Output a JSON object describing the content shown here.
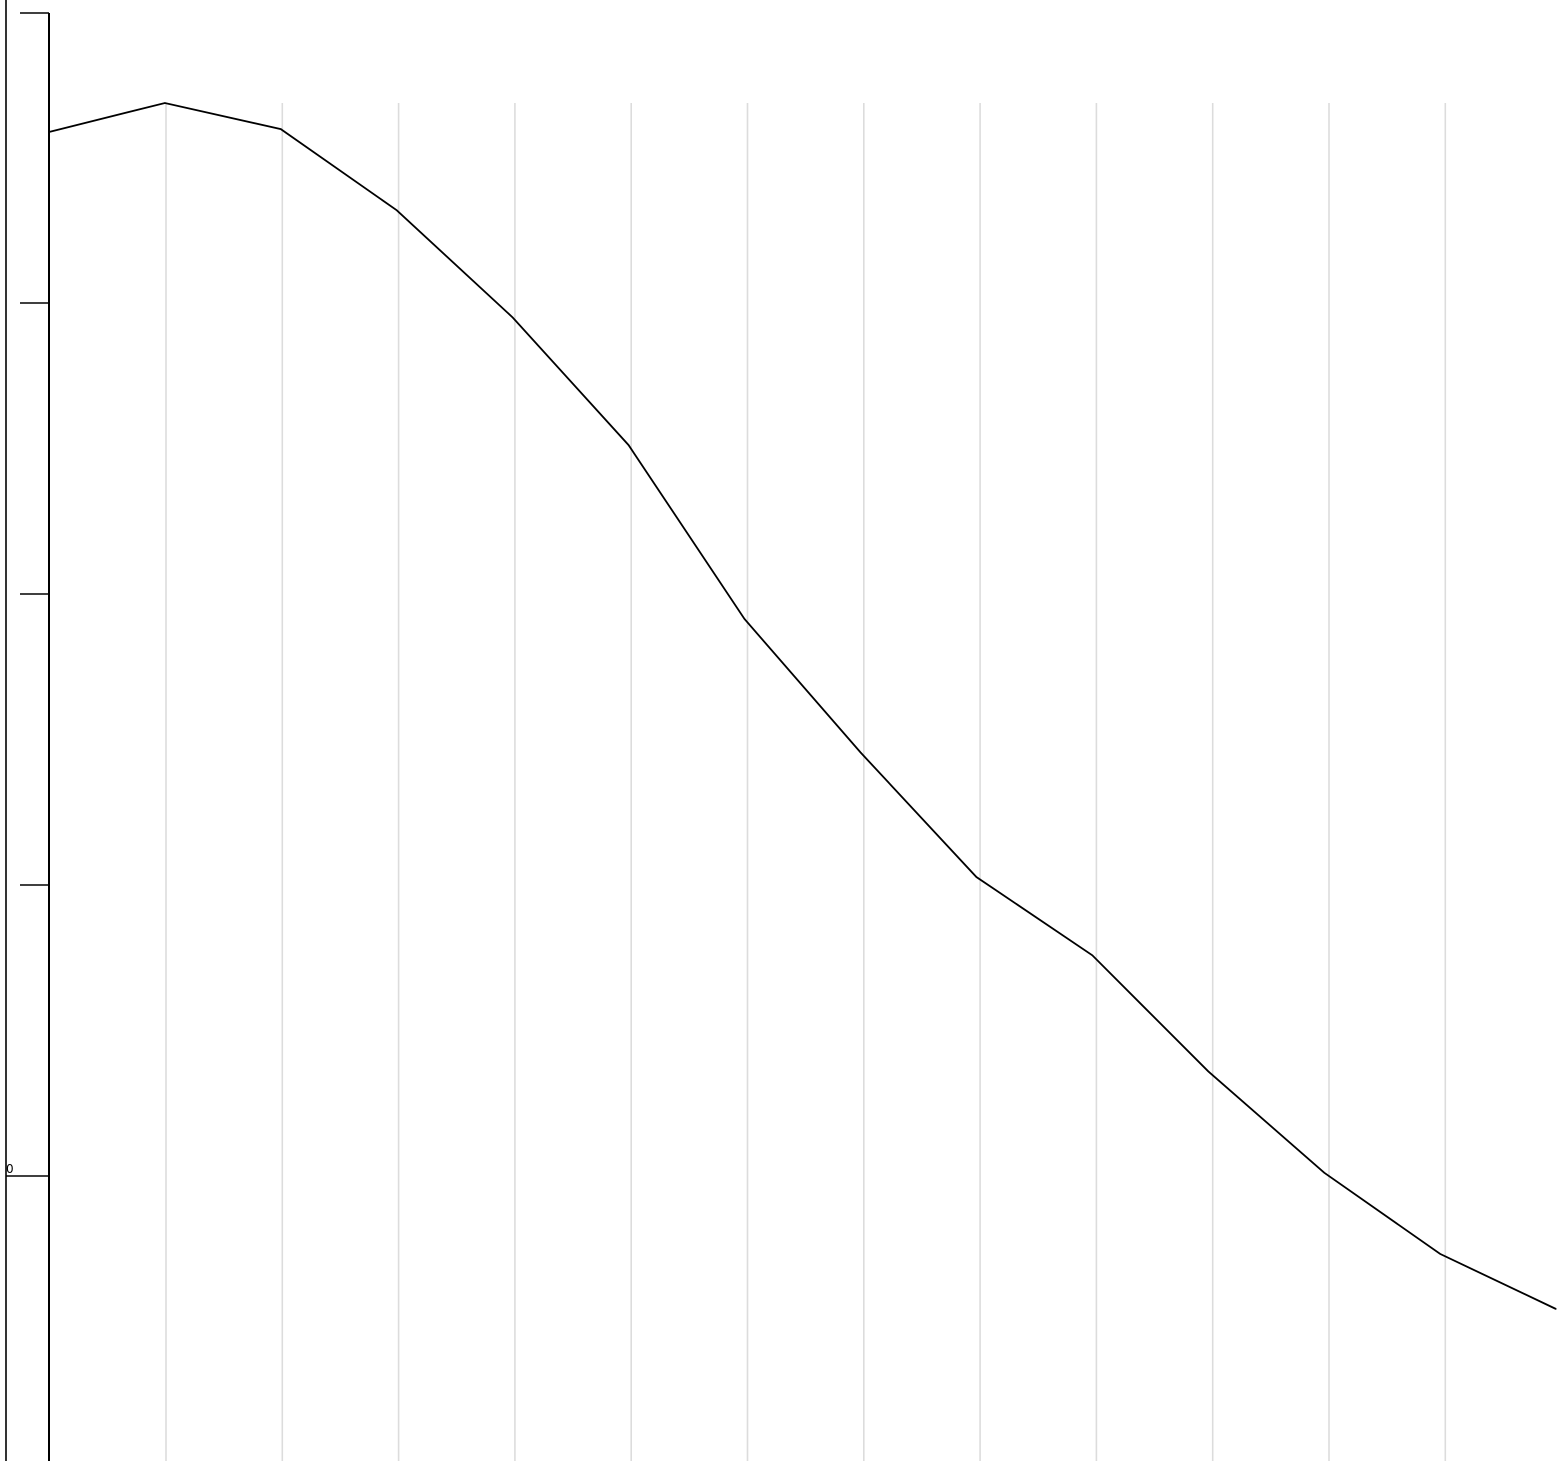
{
  "chart_data": {
    "type": "line",
    "x": [
      0,
      1,
      2,
      3,
      4,
      5,
      6,
      7,
      8,
      9,
      10,
      11,
      12,
      13
    ],
    "series": [
      {
        "values": [
          1.69,
          1.79,
          1.7,
          1.42,
          1.05,
          0.61,
          0.01,
          -0.45,
          -0.88,
          -1.15,
          -1.55,
          -1.9,
          -2.18,
          -2.37
        ]
      }
    ],
    "y_ticks": [
      -4,
      -3,
      -2,
      -1,
      0
    ],
    "y_tick_labels": [
      "",
      "",
      "",
      "",
      "0"
    ],
    "xlim": [
      0,
      13
    ],
    "ylim": [
      -4.1,
      2.2
    ],
    "grid": "vertical",
    "xlabel": "",
    "ylabel": "",
    "title": "",
    "colors": {
      "line": "#000000",
      "grid": "#dcdcdc",
      "axis": "#000000"
    }
  }
}
